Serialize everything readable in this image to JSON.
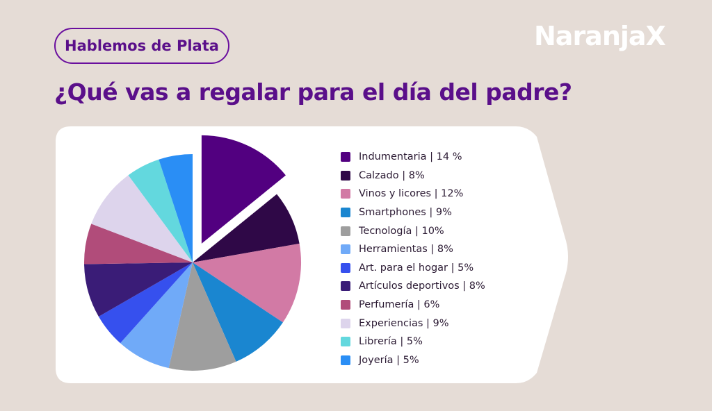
{
  "header": {
    "pill_label": "Hablemos de Plata",
    "logo_text": "NaranjaX",
    "title": "¿Qué vas a regalar para el día del padre?"
  },
  "colors": {
    "background": "#e5dcd6",
    "accent": "#5a0f8a",
    "panel": "#ffffff"
  },
  "chart_data": {
    "type": "pie",
    "title": "¿Qué vas a regalar para el día del padre?",
    "legend_position": "right",
    "exploded_slice": "Indumentaria",
    "slices": [
      {
        "label": "Indumentaria | 14 %",
        "category": "Indumentaria",
        "value": 14,
        "color": "#520080"
      },
      {
        "label": "Calzado | 8%",
        "category": "Calzado",
        "value": 8,
        "color": "#2f0847"
      },
      {
        "label": "Vinos y licores | 12%",
        "category": "Vinos y licores",
        "value": 12,
        "color": "#d27aa5"
      },
      {
        "label": "Smartphones | 9%",
        "category": "Smartphones",
        "value": 9,
        "color": "#1a86d0"
      },
      {
        "label": "Tecnología | 10%",
        "category": "Tecnología",
        "value": 10,
        "color": "#9e9e9e"
      },
      {
        "label": "Herramientas | 8%",
        "category": "Herramientas",
        "value": 8,
        "color": "#70aaf8"
      },
      {
        "label": "Art. para el hogar | 5%",
        "category": "Art. para el hogar",
        "value": 5,
        "color": "#3650ee"
      },
      {
        "label": "Artículos deportivos | 8%",
        "category": "Artículos deportivos",
        "value": 8,
        "color": "#3a1c77"
      },
      {
        "label": "Perfumería | 6%",
        "category": "Perfumería",
        "value": 6,
        "color": "#b14c7a"
      },
      {
        "label": "Experiencias | 9%",
        "category": "Experiencias",
        "value": 9,
        "color": "#ddd4ec"
      },
      {
        "label": "Librería | 5%",
        "category": "Librería",
        "value": 5,
        "color": "#63d8de"
      },
      {
        "label": "Joyería | 5%",
        "category": "Joyería",
        "value": 5,
        "color": "#2a8ef5"
      }
    ]
  }
}
